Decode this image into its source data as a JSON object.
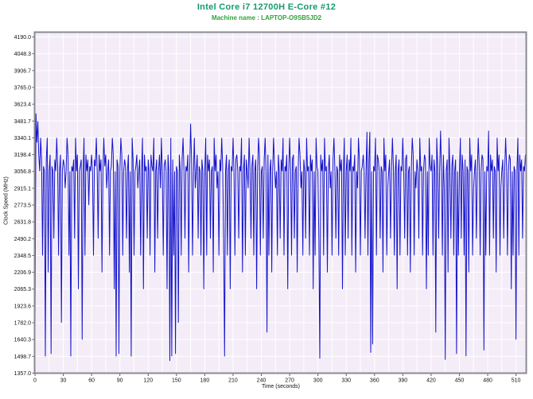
{
  "header": {
    "title": "Intel Core i7 12700H E-Core #12",
    "subtitle": "Machine name : LAPTOP-O9SB5JD2",
    "title_color": "#149a72",
    "subtitle_color": "#2fa23c"
  },
  "chart_data": {
    "type": "line",
    "title": "Intel Core i7 12700H E-Core #12",
    "subtitle": "Machine name : LAPTOP-O9SB5JD2",
    "xlabel": "Time (seconds)",
    "ylabel": "Clock Speed (MHz)",
    "ylim": [
      1357.0,
      4190.0
    ],
    "xlim": [
      0,
      521
    ],
    "y_tick_labels": [
      "4190.0",
      "4048.3",
      "3906.7",
      "3765.0",
      "3623.4",
      "3481.7",
      "3340.1",
      "3198.4",
      "3056.8",
      "2915.1",
      "2773.5",
      "2631.8",
      "2490.2",
      "2348.5",
      "2206.9",
      "2065.3",
      "1923.6",
      "1782.0",
      "1640.3",
      "1498.7",
      "1357.0"
    ],
    "x_ticks": [
      0,
      30,
      60,
      90,
      120,
      150,
      180,
      210,
      240,
      270,
      300,
      330,
      360,
      390,
      420,
      450,
      480,
      510
    ],
    "x_grid_step": 15,
    "grid": true,
    "legend": "none",
    "line_color": "#1414cc",
    "plot_bg": "#f4edf8",
    "grid_color": "#ffffff",
    "border_color": "#8a8a94",
    "x_start": 0,
    "x_step": 1,
    "values": [
      1720,
      3545,
      3300,
      3480,
      3199,
      3058,
      3340,
      3157,
      2348,
      3100,
      3058,
      1498,
      3157,
      3340,
      2206,
      3058,
      3199,
      1520,
      3100,
      3058,
      2490,
      3157,
      3058,
      3340,
      3100,
      2348,
      3058,
      3199,
      1782,
      3058,
      3157,
      3100,
      2915,
      3058,
      3340,
      3199,
      2348,
      3058,
      1498,
      3100,
      3058,
      3157,
      2490,
      3340,
      3058,
      3199,
      2065,
      3058,
      3100,
      3157,
      1640,
      3058,
      3340,
      2348,
      3199,
      3058,
      3157,
      2773,
      3100,
      3058,
      3199,
      3058,
      2348,
      3157,
      3100,
      3340,
      3058,
      2490,
      3199,
      3058,
      3157,
      2206,
      3058,
      3340,
      3100,
      3199,
      2915,
      3058,
      3157,
      2348,
      3058,
      3100,
      3340,
      3199,
      2065,
      3058,
      1498,
      3157,
      3100,
      1520,
      3058,
      3340,
      3199,
      2348,
      3058,
      3157,
      3100,
      2490,
      3058,
      3199,
      2206,
      3058,
      1498,
      3340,
      3157,
      2348,
      3058,
      3100,
      3199,
      2915,
      3058,
      3157,
      2348,
      3058,
      3340,
      2065,
      3199,
      3058,
      3100,
      2490,
      3157,
      3058,
      2348,
      3199,
      3100,
      3058,
      3340,
      2206,
      3058,
      3157,
      2490,
      3058,
      3199,
      2915,
      3340,
      3058,
      2348,
      3100,
      3157,
      3058,
      2065,
      3199,
      3058,
      1460,
      3340,
      1500,
      3157,
      2348,
      3058,
      1520,
      3100,
      3058,
      1782,
      3199,
      3058,
      2348,
      3157,
      3340,
      3058,
      2490,
      3100,
      3058,
      3199,
      2206,
      3058,
      3460,
      3157,
      2348,
      3058,
      3340,
      2915,
      3058,
      3199,
      2490,
      3100,
      3058,
      2348,
      3157,
      3058,
      2065,
      3058,
      3340,
      2348,
      3199,
      3058,
      3157,
      2490,
      3058,
      3100,
      2206,
      3340,
      3058,
      3199,
      2915,
      3058,
      2348,
      3157,
      3058,
      3340,
      3100,
      2490,
      1498,
      3058,
      3199,
      2348,
      3058,
      3157,
      2065,
      3100,
      3058,
      3340,
      3058,
      2348,
      3157,
      3199,
      3058,
      2490,
      3100,
      3058,
      3340,
      2206,
      3058,
      3199,
      2348,
      3157,
      3058,
      2915,
      3340,
      3058,
      2490,
      3100,
      3199,
      2348,
      3058,
      3157,
      2065,
      3058,
      3340,
      3199,
      2348,
      3058,
      3100,
      2490,
      3157,
      3340,
      3058,
      1700,
      3199,
      2348,
      3058,
      3157,
      2206,
      3058,
      3340,
      3100,
      2915,
      3058,
      2348,
      3199,
      3058,
      2490,
      3157,
      3058,
      3340,
      2348,
      3100,
      3058,
      3199,
      2065,
      3058,
      3340,
      3058,
      2348,
      3157,
      3199,
      2490,
      3058,
      3100,
      2206,
      3058,
      3340,
      3199,
      2915,
      3058,
      2348,
      3157,
      3058,
      2490,
      3340,
      3058,
      3100,
      2348,
      3199,
      3058,
      3157,
      2065,
      3058,
      2348,
      3340,
      3100,
      3058,
      2490,
      1480,
      3199,
      3058,
      3157,
      2348,
      3340,
      3058,
      3100,
      2206,
      3058,
      3199,
      2915,
      3058,
      2348,
      3157,
      3340,
      3058,
      2490,
      3100,
      3058,
      2348,
      3199,
      3058,
      3157,
      2065,
      3058,
      3340,
      2348,
      3058,
      3199,
      2490,
      3157,
      3058,
      3340,
      2348,
      3100,
      3058,
      3199,
      2206,
      3058,
      2915,
      3340,
      3157,
      2348,
      3058,
      3100,
      3199,
      3058,
      2490,
      3058,
      3390,
      2348,
      3157,
      3390,
      1530,
      3058,
      1600,
      3100,
      3058,
      3340,
      2348,
      3199,
      3157,
      3058,
      2490,
      3100,
      3058,
      2206,
      3340,
      3058,
      3199,
      2348,
      2915,
      3058,
      3157,
      2490,
      3058,
      3340,
      3100,
      2348,
      3058,
      3199,
      2065,
      3058,
      3157,
      2348,
      3100,
      3058,
      3340,
      3058,
      2490,
      3157,
      3199,
      2348,
      3058,
      3100,
      2206,
      3058,
      3340,
      3199,
      2348,
      3058,
      2915,
      3157,
      3058,
      2490,
      3340,
      3058,
      3100,
      2348,
      3058,
      3199,
      3157,
      2065,
      3058,
      2348,
      3340,
      3100,
      3058,
      3199,
      2348,
      3157,
      3058,
      1700,
      3340,
      3100,
      2490,
      3058,
      3400,
      3058,
      2348,
      3199,
      2915,
      1470,
      3058,
      3157,
      2206,
      3340,
      3058,
      2490,
      3100,
      3199,
      2348,
      3058,
      3157,
      1520,
      3058,
      2348,
      3058,
      3340,
      2490,
      3199,
      3058,
      2348,
      3157,
      1500,
      3100,
      3058,
      2206,
      3340,
      3058,
      3199,
      2348,
      2915,
      3058,
      3157,
      2490,
      3058,
      3340,
      3100,
      2348,
      3058,
      3199,
      3157,
      1550,
      3058,
      2348,
      3100,
      3058,
      3400,
      2348,
      3199,
      3058,
      3157,
      2490,
      3100,
      3058,
      2206,
      3340,
      3058,
      3199,
      2348,
      2915,
      3058,
      3157,
      2490,
      3058,
      3340,
      3100,
      2348,
      3058,
      3199,
      3157,
      2065,
      3058,
      2348,
      3100,
      3058,
      1640,
      3058,
      3340,
      2348,
      3199,
      3058,
      3157,
      2490,
      3100,
      3058,
      3199,
      3120
    ]
  }
}
